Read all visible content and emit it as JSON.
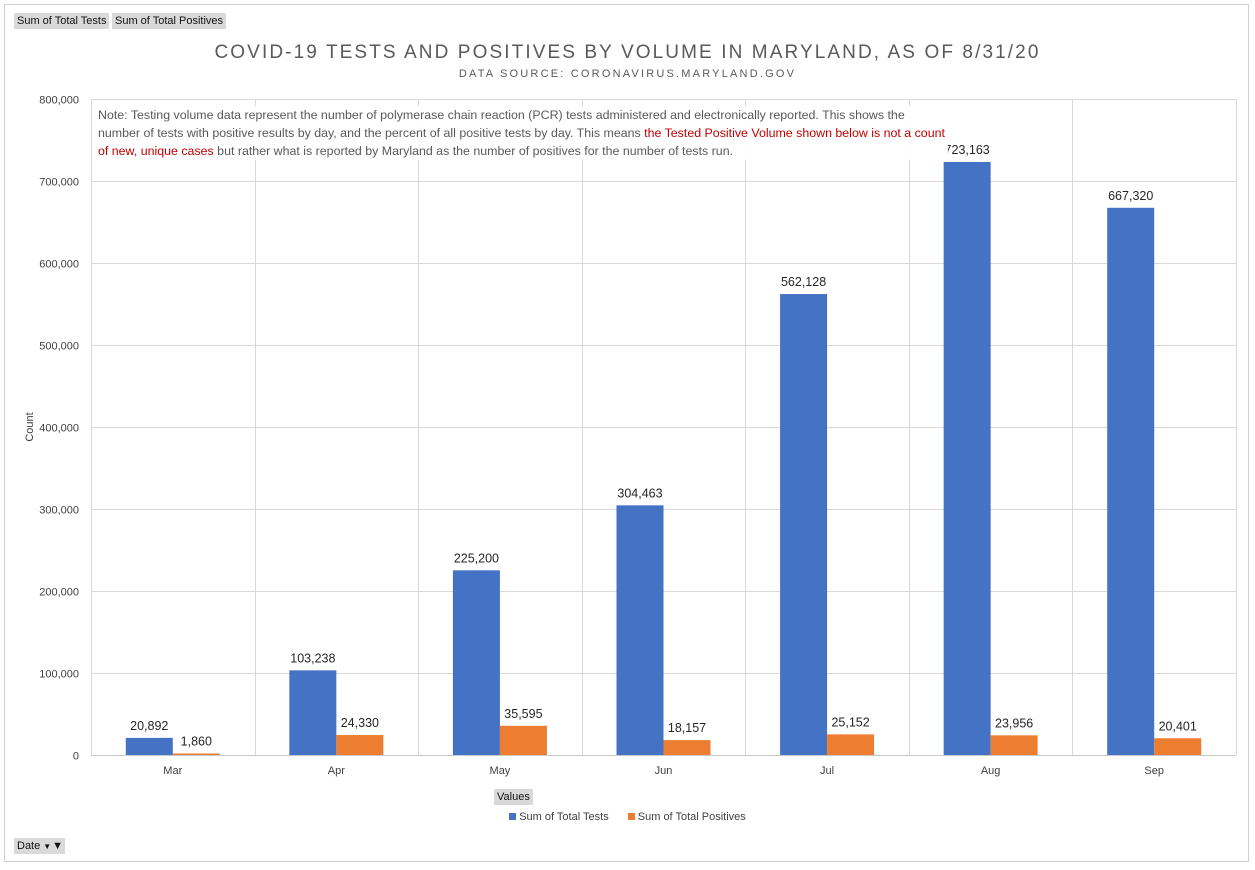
{
  "buttons": {
    "tests": "Sum of Total Tests",
    "positives": "Sum of Total Positives",
    "values": "Values",
    "date": "Date"
  },
  "note": {
    "part1": "Note: Testing volume data represent the number of polymerase chain reaction (PCR) tests administered and electronically reported. This shows the number of tests with positive results by day, and the percent of all positive tests by day. This means ",
    "highlight": "the Tested Positive Volume shown below is not a count of new, unique cases",
    "part2": " but rather what is reported by Maryland as the number of positives for the number of tests run.",
    "highlight_color": "#c00000"
  },
  "chart_data": {
    "type": "bar",
    "title": "COVID-19 TESTS AND POSITIVES BY VOLUME IN MARYLAND, AS OF 8/31/20",
    "subtitle": "DATA SOURCE: CORONAVIRUS.MARYLAND.GOV",
    "xlabel": "",
    "ylabel": "Count",
    "categories": [
      "Mar",
      "Apr",
      "May",
      "Jun",
      "Jul",
      "Aug",
      "Sep"
    ],
    "series": [
      {
        "name": "Sum of Total Tests",
        "color": "#4472c4",
        "values": [
          20892,
          103238,
          225200,
          304463,
          562128,
          723163,
          667320
        ],
        "labels": [
          "20,892",
          "103,238",
          "225,200",
          "304,463",
          "562,128",
          "723,163",
          "667,320"
        ]
      },
      {
        "name": "Sum of Total Positives",
        "color": "#ed7d31",
        "values": [
          1860,
          24330,
          35595,
          18157,
          25152,
          23956,
          20401
        ],
        "labels": [
          "1,860",
          "24,330",
          "35,595",
          "18,157",
          "25,152",
          "23,956",
          "20,401"
        ]
      }
    ],
    "ylim": [
      0,
      800000
    ],
    "yticks": [
      0,
      100000,
      200000,
      300000,
      400000,
      500000,
      600000,
      700000,
      800000
    ],
    "ytick_labels": [
      "0",
      "100,000",
      "200,000",
      "300,000",
      "400,000",
      "500,000",
      "600,000",
      "700,000",
      "800,000"
    ],
    "grid": true,
    "legend": "bottom"
  }
}
